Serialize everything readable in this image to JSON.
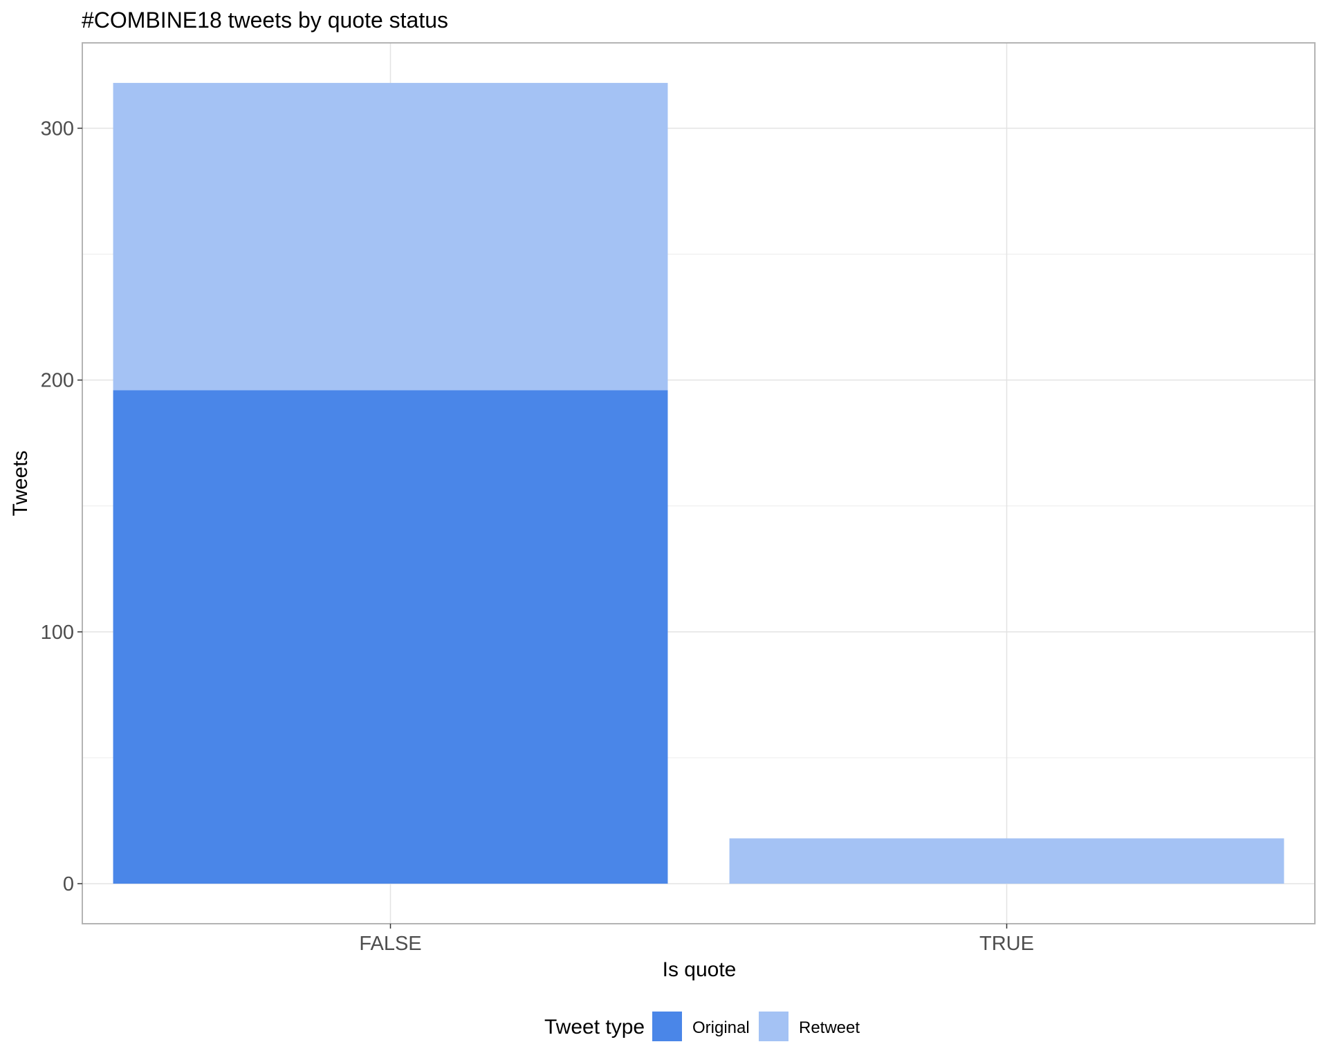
{
  "chart_data": {
    "type": "bar",
    "stacked": true,
    "title": "#COMBINE18 tweets by quote status",
    "xlabel": "Is quote",
    "ylabel": "Tweets",
    "categories": [
      "FALSE",
      "TRUE"
    ],
    "series": [
      {
        "name": "Original",
        "values": [
          196,
          0
        ],
        "color": "#4a86e8"
      },
      {
        "name": "Retweet",
        "values": [
          122,
          18
        ],
        "color": "#a4c2f4"
      }
    ],
    "ylim": [
      -15.9,
      333.9
    ],
    "yticks": [
      0,
      100,
      200,
      300
    ],
    "y_minor_ticks": [
      50,
      150,
      250
    ],
    "grid": true,
    "legend": {
      "title": "Tweet type",
      "placement": "bottom"
    }
  }
}
